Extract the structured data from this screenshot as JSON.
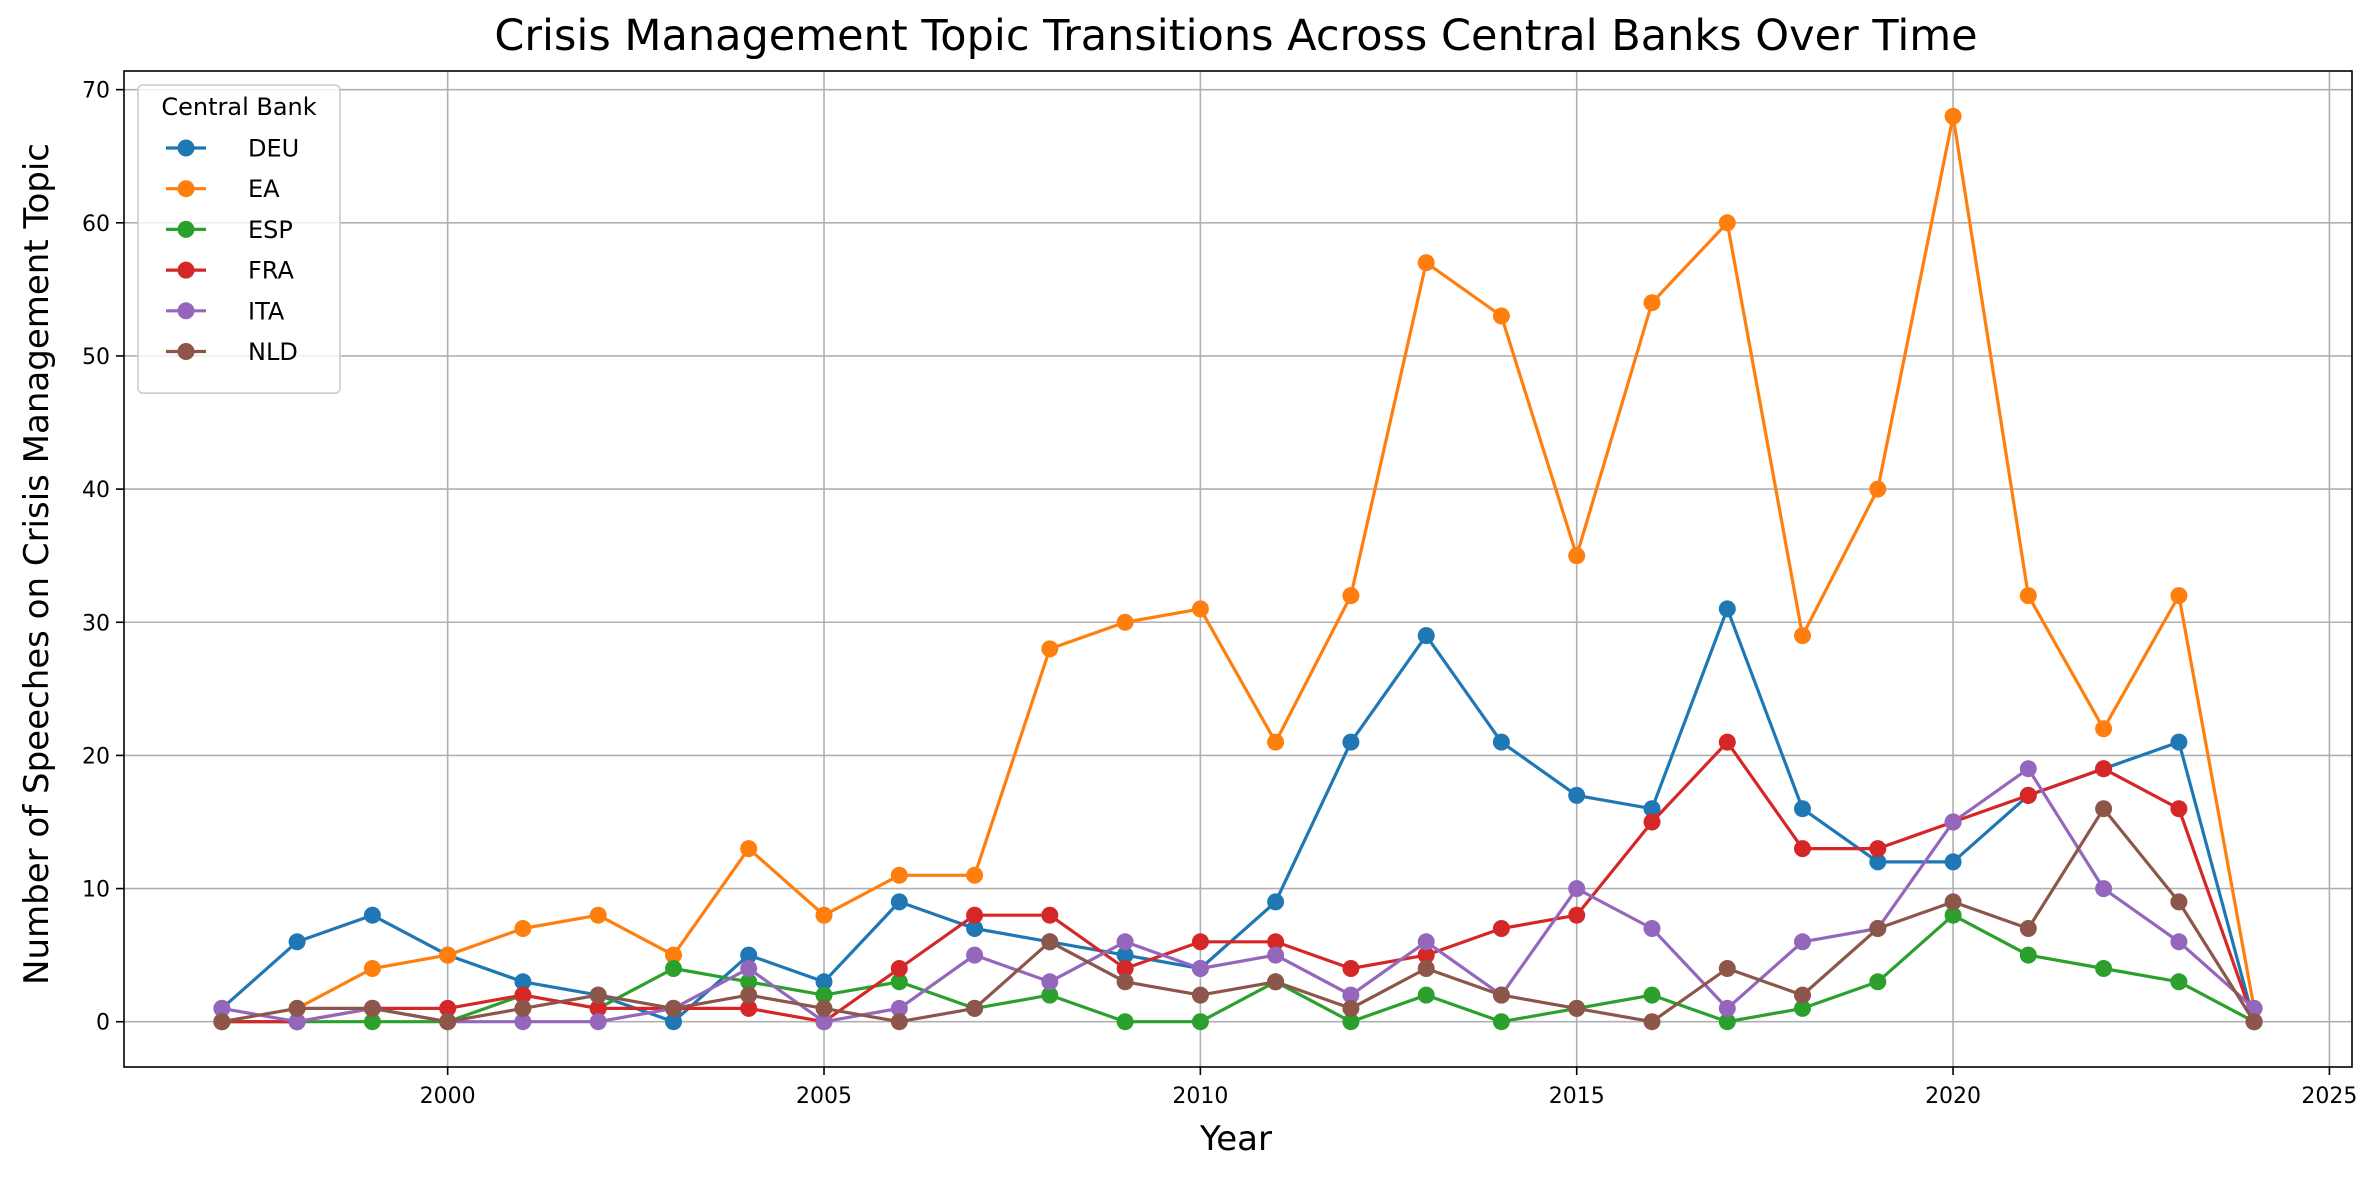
{
  "chart_data": {
    "type": "line",
    "title": "Crisis Management Topic Transitions Across Central Banks Over Time",
    "xlabel": "Year",
    "ylabel": "Number of Speeches on Crisis Management Topic",
    "xlim": [
      1995.7,
      2025.3
    ],
    "ylim": [
      -3.4,
      71.4
    ],
    "x_ticks": [
      "2000",
      "2005",
      "2010",
      "2015",
      "2020",
      "2025"
    ],
    "y_ticks": [
      "0",
      "10",
      "20",
      "30",
      "40",
      "50",
      "60",
      "70"
    ],
    "grid": true,
    "legend": {
      "title": "Central Bank",
      "placement": "top-left"
    },
    "x": [
      1997,
      1998,
      1999,
      2000,
      2001,
      2002,
      2003,
      2004,
      2005,
      2006,
      2007,
      2008,
      2009,
      2010,
      2011,
      2012,
      2013,
      2014,
      2015,
      2016,
      2017,
      2018,
      2019,
      2020,
      2021,
      2022,
      2023,
      2024
    ],
    "series": [
      {
        "name": "DEU",
        "color": "#1f77b4",
        "values": [
          1,
          6,
          8,
          5,
          3,
          2,
          0,
          5,
          3,
          9,
          7,
          6,
          5,
          4,
          9,
          21,
          29,
          21,
          17,
          16,
          31,
          16,
          12,
          12,
          17,
          19,
          21,
          0
        ]
      },
      {
        "name": "EA",
        "color": "#ff7f0e",
        "values": [
          null,
          1,
          4,
          5,
          7,
          8,
          5,
          13,
          8,
          11,
          11,
          28,
          30,
          31,
          21,
          32,
          57,
          53,
          35,
          54,
          60,
          29,
          40,
          68,
          32,
          22,
          32,
          1
        ]
      },
      {
        "name": "ESP",
        "color": "#2ca02c",
        "values": [
          0,
          0,
          0,
          0,
          2,
          1,
          4,
          3,
          2,
          3,
          1,
          2,
          0,
          0,
          3,
          0,
          2,
          0,
          1,
          2,
          0,
          1,
          3,
          8,
          5,
          4,
          3,
          0
        ]
      },
      {
        "name": "FRA",
        "color": "#d62728",
        "values": [
          0,
          0,
          1,
          1,
          2,
          1,
          1,
          1,
          0,
          4,
          8,
          8,
          4,
          6,
          6,
          4,
          5,
          7,
          8,
          15,
          21,
          13,
          13,
          15,
          17,
          19,
          16,
          0
        ]
      },
      {
        "name": "ITA",
        "color": "#9467bd",
        "values": [
          1,
          0,
          1,
          0,
          0,
          0,
          1,
          4,
          0,
          1,
          5,
          3,
          6,
          4,
          5,
          2,
          6,
          2,
          10,
          7,
          1,
          6,
          7,
          15,
          19,
          10,
          6,
          1
        ]
      },
      {
        "name": "NLD",
        "color": "#8c564b",
        "values": [
          0,
          1,
          1,
          0,
          1,
          2,
          1,
          2,
          1,
          0,
          1,
          6,
          3,
          2,
          3,
          1,
          4,
          2,
          1,
          0,
          4,
          2,
          7,
          9,
          7,
          16,
          9,
          0
        ]
      }
    ]
  }
}
